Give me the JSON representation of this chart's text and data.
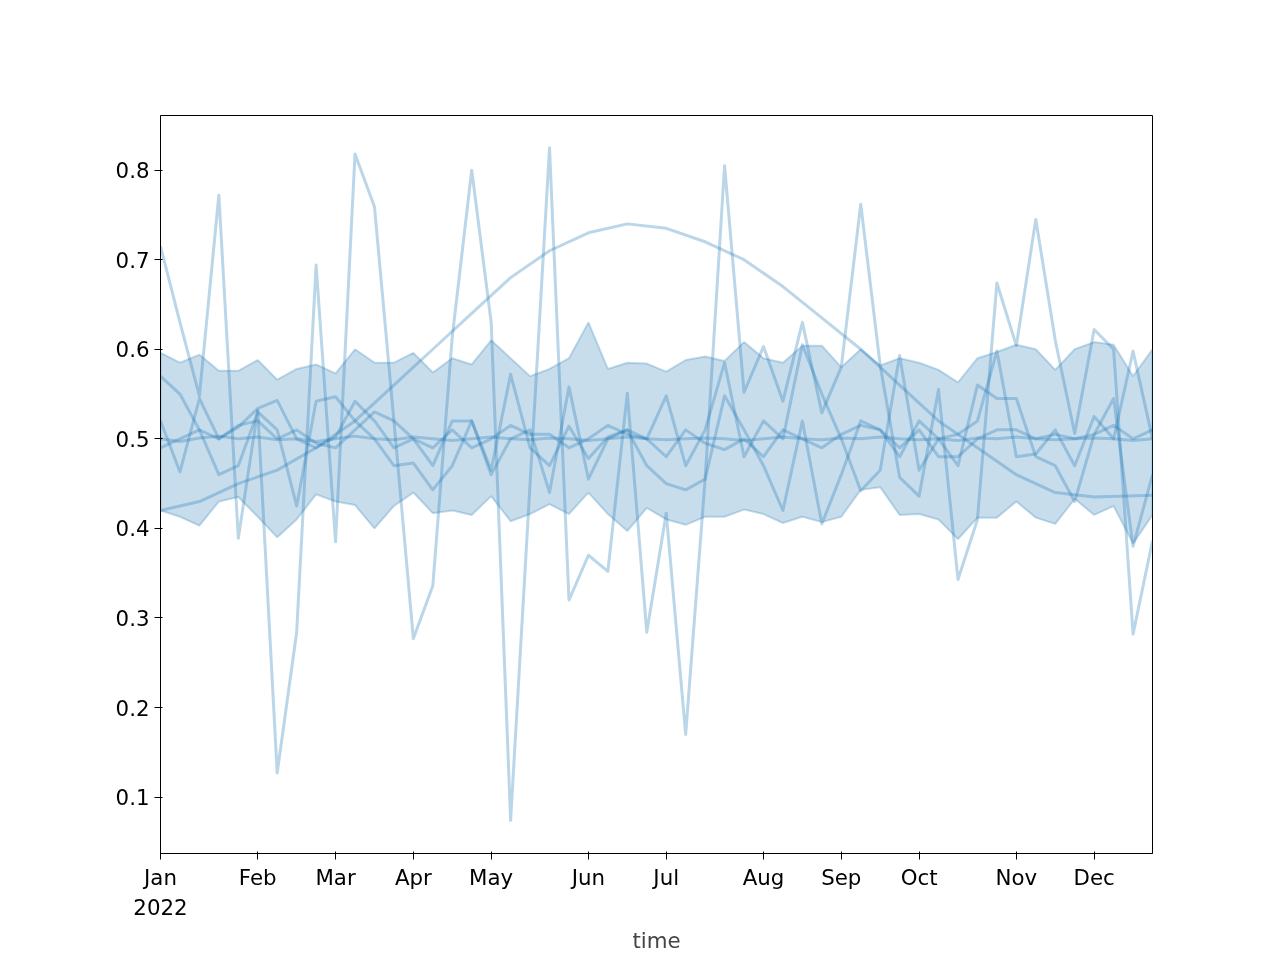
{
  "chart_data": {
    "type": "line",
    "xlabel": "time",
    "grid": false,
    "line_style": "solid",
    "marker": "none",
    "x": [
      "2022-01-02",
      "2022-01-09",
      "2022-01-16",
      "2022-01-23",
      "2022-01-30",
      "2022-02-06",
      "2022-02-13",
      "2022-02-20",
      "2022-02-27",
      "2022-03-06",
      "2022-03-13",
      "2022-03-20",
      "2022-03-27",
      "2022-04-03",
      "2022-04-10",
      "2022-04-17",
      "2022-04-24",
      "2022-05-01",
      "2022-05-08",
      "2022-05-15",
      "2022-05-22",
      "2022-05-29",
      "2022-06-05",
      "2022-06-12",
      "2022-06-19",
      "2022-06-26",
      "2022-07-03",
      "2022-07-10",
      "2022-07-17",
      "2022-07-24",
      "2022-07-31",
      "2022-08-07",
      "2022-08-14",
      "2022-08-21",
      "2022-08-28",
      "2022-09-04",
      "2022-09-11",
      "2022-09-18",
      "2022-09-25",
      "2022-10-02",
      "2022-10-09",
      "2022-10-16",
      "2022-10-23",
      "2022-10-30",
      "2022-11-06",
      "2022-11-13",
      "2022-11-20",
      "2022-11-27",
      "2022-12-04",
      "2022-12-11",
      "2022-12-18",
      "2022-12-25"
    ],
    "xlim": [
      "2022-01-02",
      "2022-12-25"
    ],
    "xticks": [
      {
        "value": "2022-01-02",
        "label": "Jan\n2022"
      },
      {
        "value": "2022-02-06",
        "label": "Feb"
      },
      {
        "value": "2022-03-06",
        "label": "Mar"
      },
      {
        "value": "2022-04-03",
        "label": "Apr"
      },
      {
        "value": "2022-05-01",
        "label": "May"
      },
      {
        "value": "2022-06-05",
        "label": "Jun"
      },
      {
        "value": "2022-07-03",
        "label": "Jul"
      },
      {
        "value": "2022-08-07",
        "label": "Aug"
      },
      {
        "value": "2022-09-04",
        "label": "Sep"
      },
      {
        "value": "2022-10-02",
        "label": "Oct"
      },
      {
        "value": "2022-11-06",
        "label": "Nov"
      },
      {
        "value": "2022-12-04",
        "label": "Dec"
      }
    ],
    "ylim": [
      0.037,
      0.861
    ],
    "yticks": [
      0.1,
      0.2,
      0.3,
      0.4,
      0.5,
      0.6,
      0.7,
      0.8
    ],
    "series": [
      {
        "color": "#1f77b4",
        "values": [
          0.5,
          0.497,
          0.501,
          0.503,
          0.5,
          0.502,
          0.499,
          0.5,
          0.497,
          0.5,
          0.503,
          0.5,
          0.499,
          0.502,
          0.5,
          0.498,
          0.5,
          0.502,
          0.5,
          0.499,
          0.501,
          0.5,
          0.498,
          0.5,
          0.502,
          0.5,
          0.499,
          0.5,
          0.501,
          0.5,
          0.498,
          0.5,
          0.502,
          0.5,
          0.499,
          0.501,
          0.5,
          0.502,
          0.5,
          0.499,
          0.5,
          0.498,
          0.501,
          0.5,
          0.502,
          0.5,
          0.499,
          0.5,
          0.501,
          0.5,
          0.498,
          0.5
        ],
        "lower": [
          0.42,
          0.413,
          0.403,
          0.43,
          0.435,
          0.413,
          0.39,
          0.41,
          0.438,
          0.43,
          0.426,
          0.4,
          0.425,
          0.44,
          0.417,
          0.42,
          0.415,
          0.436,
          0.408,
          0.416,
          0.427,
          0.416,
          0.44,
          0.416,
          0.397,
          0.423,
          0.41,
          0.404,
          0.413,
          0.413,
          0.421,
          0.416,
          0.406,
          0.413,
          0.407,
          0.413,
          0.443,
          0.446,
          0.415,
          0.416,
          0.41,
          0.388,
          0.412,
          0.412,
          0.43,
          0.412,
          0.405,
          0.433,
          0.415,
          0.425,
          0.383,
          0.415
        ],
        "upper": [
          0.596,
          0.585,
          0.594,
          0.576,
          0.576,
          0.588,
          0.566,
          0.578,
          0.583,
          0.573,
          0.6,
          0.585,
          0.585,
          0.596,
          0.574,
          0.59,
          0.583,
          0.61,
          0.59,
          0.57,
          0.578,
          0.59,
          0.63,
          0.578,
          0.585,
          0.584,
          0.575,
          0.588,
          0.592,
          0.587,
          0.608,
          0.59,
          0.585,
          0.604,
          0.604,
          0.58,
          0.6,
          0.582,
          0.59,
          0.585,
          0.577,
          0.563,
          0.59,
          0.597,
          0.605,
          0.6,
          0.577,
          0.6,
          0.608,
          0.605,
          0.57,
          0.6
        ]
      },
      {
        "color": "#1f77b4",
        "values": [
          0.715,
          0.63,
          0.548,
          0.772,
          0.389,
          0.532,
          0.127,
          0.284,
          0.694,
          0.385,
          0.818,
          0.759,
          0.52,
          0.277,
          0.336,
          0.614,
          0.8,
          0.63,
          0.074,
          0.45,
          0.825,
          0.32,
          0.37,
          0.352,
          0.551,
          0.284,
          0.417,
          0.17,
          0.455,
          0.805,
          0.552,
          0.603,
          0.542,
          0.63,
          0.529,
          0.58,
          0.762,
          0.582,
          0.457,
          0.436,
          0.555,
          0.343,
          0.41,
          0.674,
          0.604,
          0.745,
          0.61,
          0.506,
          0.622,
          0.6,
          0.282,
          0.386
        ]
      },
      {
        "color": "#1f77b4",
        "x": [
          "2022-01-02",
          "2022-01-16",
          "2022-01-30",
          "2022-02-13",
          "2022-02-27",
          "2022-03-13",
          "2022-03-27",
          "2022-04-10",
          "2022-04-24",
          "2022-05-08",
          "2022-05-22",
          "2022-06-05",
          "2022-06-19",
          "2022-07-03",
          "2022-07-17",
          "2022-07-31",
          "2022-08-14",
          "2022-08-28",
          "2022-09-11",
          "2022-09-25",
          "2022-10-09",
          "2022-10-23",
          "2022-11-06",
          "2022-11-20",
          "2022-12-04",
          "2022-12-25"
        ],
        "values": [
          0.42,
          0.43,
          0.45,
          0.465,
          0.49,
          0.52,
          0.56,
          0.6,
          0.64,
          0.68,
          0.71,
          0.73,
          0.74,
          0.735,
          0.72,
          0.7,
          0.67,
          0.635,
          0.6,
          0.56,
          0.52,
          0.49,
          0.46,
          0.44,
          0.435,
          0.437
        ]
      },
      {
        "color": "#1f77b4",
        "values": [
          0.57,
          0.55,
          0.51,
          0.46,
          0.47,
          0.53,
          0.51,
          0.425,
          0.542,
          0.547,
          0.52,
          0.5,
          0.47,
          0.473,
          0.443,
          0.47,
          0.52,
          0.46,
          0.5,
          0.51,
          0.44,
          0.558,
          0.455,
          0.5,
          0.51,
          0.47,
          0.45,
          0.443,
          0.455,
          0.548,
          0.51,
          0.47,
          0.42,
          0.52,
          0.405,
          0.46,
          0.52,
          0.51,
          0.48,
          0.52,
          0.5,
          0.47,
          0.56,
          0.545,
          0.545,
          0.48,
          0.47,
          0.43,
          0.505,
          0.545,
          0.38,
          0.46
        ]
      },
      {
        "color": "#1f77b4",
        "values": [
          0.52,
          0.463,
          0.545,
          0.5,
          0.513,
          0.534,
          0.543,
          0.5,
          0.49,
          0.502,
          0.542,
          0.52,
          0.49,
          0.5,
          0.47,
          0.52,
          0.52,
          0.465,
          0.572,
          0.49,
          0.47,
          0.514,
          0.478,
          0.502,
          0.51,
          0.5,
          0.548,
          0.47,
          0.51,
          0.585,
          0.48,
          0.52,
          0.5,
          0.605,
          0.55,
          0.5,
          0.442,
          0.465,
          0.593,
          0.465,
          0.5,
          0.505,
          0.52,
          0.598,
          0.48,
          0.483,
          0.51,
          0.47,
          0.525,
          0.5,
          0.598,
          0.5
        ]
      },
      {
        "color": "#1f77b4",
        "values": [
          0.49,
          0.5,
          0.51,
          0.5,
          0.515,
          0.52,
          0.5,
          0.51,
          0.495,
          0.49,
          0.51,
          0.53,
          0.52,
          0.5,
          0.49,
          0.51,
          0.49,
          0.5,
          0.515,
          0.505,
          0.505,
          0.49,
          0.5,
          0.515,
          0.505,
          0.5,
          0.48,
          0.51,
          0.495,
          0.488,
          0.5,
          0.48,
          0.51,
          0.5,
          0.49,
          0.505,
          0.515,
          0.51,
          0.49,
          0.51,
          0.48,
          0.48,
          0.5,
          0.51,
          0.51,
          0.5,
          0.505,
          0.5,
          0.505,
          0.515,
          0.5,
          0.51
        ]
      }
    ]
  }
}
